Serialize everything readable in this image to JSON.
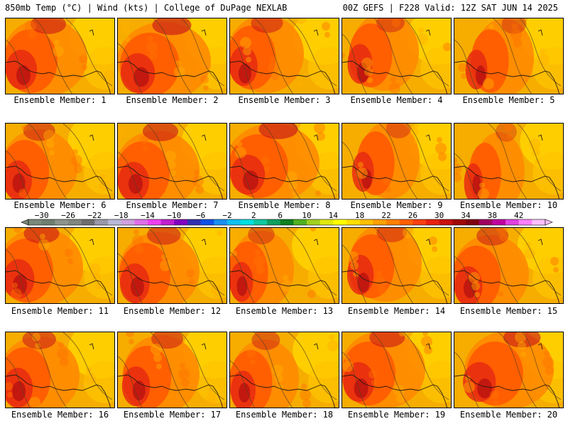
{
  "header": {
    "left": "850mb Temp (°C) | Wind (kts) | College of DuPage NEXLAB",
    "right": "00Z GEFS | F228 Valid: 12Z SAT JUN 14 2025"
  },
  "member_prefix": "Ensemble Member: ",
  "members": [
    "1",
    "2",
    "3",
    "4",
    "5",
    "6",
    "7",
    "8",
    "9",
    "10",
    "11",
    "12",
    "13",
    "14",
    "15",
    "16",
    "17",
    "18",
    "19",
    "20"
  ],
  "colorbar": {
    "tick_labels": [
      "−30",
      "−26",
      "−22",
      "−18",
      "−14",
      "−10",
      "−6",
      "−2",
      "2",
      "6",
      "10",
      "14",
      "18",
      "22",
      "26",
      "30",
      "34",
      "38",
      "42"
    ],
    "min": -32,
    "step": 2,
    "colors": [
      "#7a8a7a",
      "#6f7f6f",
      "#8c948c",
      "#7f877f",
      "#6e6e6e",
      "#9898a8",
      "#b8b8d8",
      "#d0a0e0",
      "#e070e8",
      "#f040f0",
      "#c020d0",
      "#8000c0",
      "#3030b0",
      "#1050e8",
      "#1890f0",
      "#10c0f0",
      "#00e0e0",
      "#10c8a0",
      "#10a060",
      "#108020",
      "#50b020",
      "#a0d020",
      "#e0e810",
      "#ffff00",
      "#ffe000",
      "#ffc000",
      "#ffa000",
      "#ff8000",
      "#ff6000",
      "#f84010",
      "#e82010",
      "#c81010",
      "#a00808",
      "#800010",
      "#a00060",
      "#c000a0",
      "#e040e0",
      "#ff80ff",
      "#ffc0ff"
    ]
  }
}
